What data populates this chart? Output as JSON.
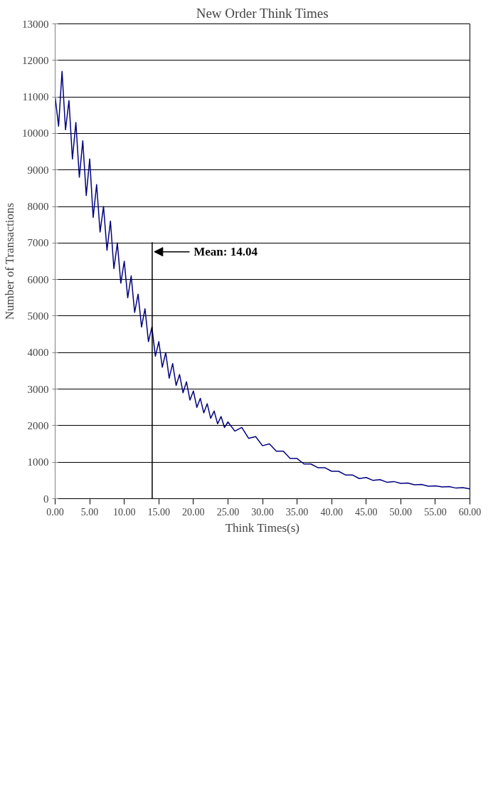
{
  "chart_data": {
    "type": "line",
    "title": "New Order Think Times",
    "xlabel": "Think Times(s)",
    "ylabel": "Number of Transactions",
    "x": [
      0,
      0.5,
      1,
      1.5,
      2,
      2.5,
      3,
      3.5,
      4,
      4.5,
      5,
      5.5,
      6,
      6.5,
      7,
      7.5,
      8,
      8.5,
      9,
      9.5,
      10,
      10.5,
      11,
      11.5,
      12,
      12.5,
      13,
      13.5,
      14,
      14.5,
      15,
      15.5,
      16,
      16.5,
      17,
      17.5,
      18,
      18.5,
      19,
      19.5,
      20,
      20.5,
      21,
      21.5,
      22,
      22.5,
      23,
      23.5,
      24,
      24.5,
      25,
      26,
      27,
      28,
      29,
      30,
      31,
      32,
      33,
      34,
      35,
      36,
      37,
      38,
      39,
      40,
      41,
      42,
      43,
      44,
      45,
      46,
      47,
      48,
      49,
      50,
      51,
      52,
      53,
      54,
      55,
      56,
      57,
      58,
      59,
      60
    ],
    "series": [
      {
        "color": "#000080",
        "values": [
          11000,
          10200,
          11700,
          10100,
          10900,
          9300,
          10300,
          8800,
          9800,
          8300,
          9300,
          7700,
          8600,
          7300,
          8000,
          6800,
          7600,
          6300,
          7000,
          5900,
          6500,
          5500,
          6100,
          5100,
          5600,
          4700,
          5200,
          4300,
          4700,
          3900,
          4300,
          3600,
          4000,
          3300,
          3700,
          3100,
          3400,
          2900,
          3200,
          2700,
          2950,
          2500,
          2750,
          2350,
          2600,
          2200,
          2400,
          2050,
          2250,
          1950,
          2100,
          1850,
          1950,
          1650,
          1700,
          1450,
          1500,
          1300,
          1300,
          1100,
          1100,
          950,
          950,
          850,
          850,
          750,
          750,
          650,
          650,
          550,
          580,
          500,
          520,
          450,
          470,
          420,
          430,
          380,
          390,
          340,
          350,
          320,
          330,
          290,
          300,
          270
        ]
      }
    ],
    "xlim": [
      0,
      60
    ],
    "xticks": [
      {
        "value": 0,
        "label": "0.00"
      },
      {
        "value": 5,
        "label": "5.00"
      },
      {
        "value": 10,
        "label": "10.00"
      },
      {
        "value": 15,
        "label": "15.00"
      },
      {
        "value": 20,
        "label": "20.00"
      },
      {
        "value": 25,
        "label": "25.00"
      },
      {
        "value": 30,
        "label": "30.00"
      },
      {
        "value": 35,
        "label": "35.00"
      },
      {
        "value": 40,
        "label": "40.00"
      },
      {
        "value": 45,
        "label": "45.00"
      },
      {
        "value": 50,
        "label": "50.00"
      },
      {
        "value": 55,
        "label": "55.00"
      },
      {
        "value": 60,
        "label": "60.00"
      }
    ],
    "ylim": [
      0,
      13000
    ],
    "yticks": [
      0,
      1000,
      2000,
      3000,
      4000,
      5000,
      6000,
      7000,
      8000,
      9000,
      10000,
      11000,
      12000,
      13000
    ],
    "ref_lines": [
      {
        "axis": "x",
        "value": 14.04,
        "label": "Mean: 14.04",
        "color": "#000000"
      }
    ],
    "grid": "y",
    "marker": "none",
    "line_style": "solid"
  }
}
